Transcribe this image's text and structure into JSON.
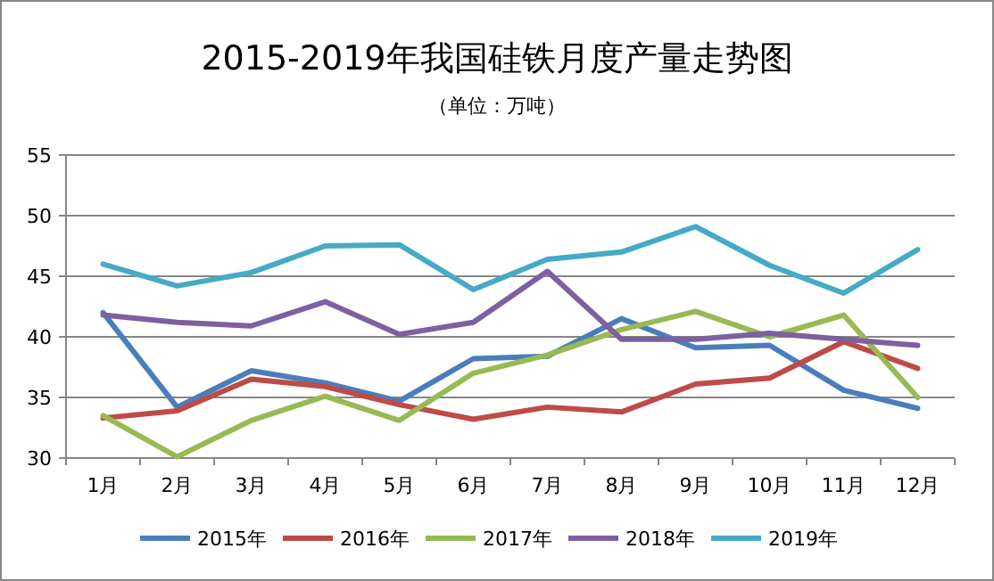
{
  "chart_data": {
    "type": "line",
    "title": "2015-2019年我国硅铁月度产量走势图",
    "subtitle": "（单位：万吨）",
    "categories": [
      "1月",
      "2月",
      "3月",
      "4月",
      "5月",
      "6月",
      "7月",
      "8月",
      "9月",
      "10月",
      "11月",
      "12月"
    ],
    "series": [
      {
        "name": "2015年",
        "color": "#4a7ebb",
        "values": [
          42.0,
          34.2,
          37.2,
          36.2,
          34.7,
          38.2,
          38.4,
          41.5,
          39.1,
          39.3,
          35.6,
          34.1
        ]
      },
      {
        "name": "2016年",
        "color": "#be4b48",
        "values": [
          33.3,
          33.9,
          36.5,
          35.9,
          34.4,
          33.2,
          34.2,
          33.8,
          36.1,
          36.6,
          39.6,
          37.4
        ]
      },
      {
        "name": "2017年",
        "color": "#98b954",
        "values": [
          33.5,
          30.1,
          33.1,
          35.1,
          33.1,
          37.0,
          38.5,
          40.6,
          42.1,
          40.0,
          41.8,
          35.0
        ]
      },
      {
        "name": "2018年",
        "color": "#7d60a0",
        "values": [
          41.8,
          41.2,
          40.9,
          42.9,
          40.2,
          41.2,
          45.4,
          39.8,
          39.8,
          40.3,
          39.8,
          39.3
        ]
      },
      {
        "name": "2019年",
        "color": "#46aac5",
        "values": [
          46.0,
          44.2,
          45.3,
          47.5,
          47.6,
          43.9,
          46.4,
          47.0,
          49.1,
          45.9,
          43.6,
          47.2
        ]
      }
    ],
    "ylim": [
      30,
      55
    ],
    "yticks": [
      30,
      35,
      40,
      45,
      50,
      55
    ],
    "grid": "y",
    "legend": "bottom",
    "line_style": "solid"
  }
}
